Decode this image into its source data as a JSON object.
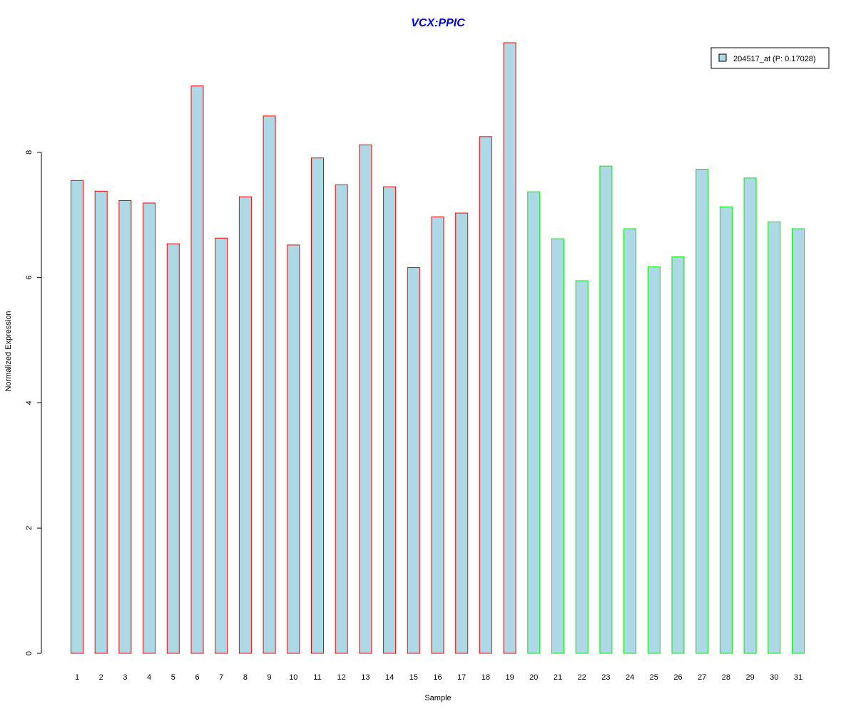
{
  "chart_data": {
    "type": "bar",
    "title": "VCX:PPIC",
    "xlabel": "Sample",
    "ylabel": "Normalized Expression",
    "categories": [
      "1",
      "2",
      "3",
      "4",
      "5",
      "6",
      "7",
      "8",
      "9",
      "10",
      "11",
      "12",
      "13",
      "14",
      "15",
      "16",
      "17",
      "18",
      "19",
      "20",
      "21",
      "22",
      "23",
      "24",
      "25",
      "26",
      "27",
      "28",
      "29",
      "30",
      "31"
    ],
    "series": [
      {
        "name": "204517_at (P: 0.17028)",
        "values": [
          7.55,
          7.38,
          7.23,
          7.19,
          6.54,
          9.06,
          6.63,
          7.29,
          8.58,
          6.52,
          7.91,
          7.48,
          8.12,
          7.45,
          6.16,
          6.97,
          7.03,
          8.25,
          9.75,
          7.37,
          6.62,
          5.95,
          7.78,
          6.78,
          6.17,
          6.33,
          7.73,
          7.13,
          7.59,
          6.89,
          6.78
        ]
      }
    ],
    "group_of_bar": [
      1,
      1,
      1,
      1,
      1,
      1,
      1,
      1,
      1,
      1,
      1,
      1,
      1,
      1,
      1,
      1,
      1,
      1,
      1,
      2,
      2,
      2,
      2,
      2,
      2,
      2,
      2,
      2,
      2,
      2,
      2
    ],
    "yticks": [
      0,
      2,
      4,
      6,
      8
    ],
    "ylim": [
      0,
      9.75
    ],
    "legend_position": "top-right",
    "grid": false,
    "colors": {
      "title": "#0000cc",
      "bar_fill": "#add8e6",
      "group1_border": "#ff0000",
      "group2_border": "#00ee00",
      "axis": "#000000",
      "text": "#000000"
    }
  }
}
